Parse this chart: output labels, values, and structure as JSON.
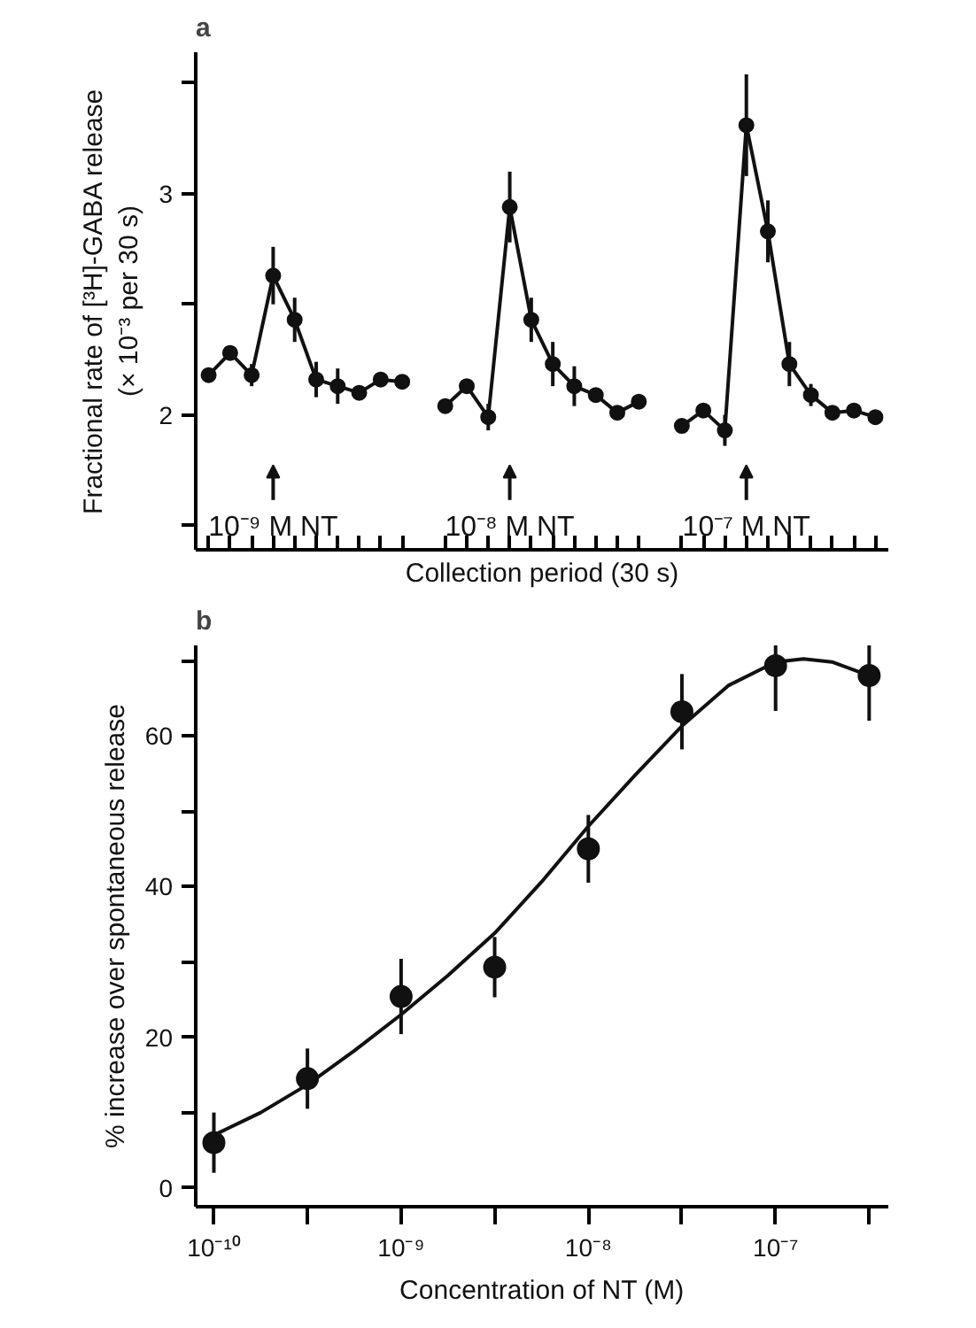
{
  "chart_data": [
    {
      "type": "line",
      "title": "a",
      "xlabel": "Collection period (30 s)",
      "ylabel": "Fractional rate of [³H]-GABA release\n(× 10⁻³ per 30 s)",
      "categories": [
        null,
        null,
        null,
        null,
        null,
        null,
        null,
        null,
        null,
        null,
        null,
        null,
        null,
        null,
        null,
        null,
        null,
        null,
        null,
        null,
        null,
        null,
        null,
        null,
        null,
        null,
        null,
        null,
        null,
        null,
        null,
        null
      ],
      "ylim": [
        1.39,
        3.64
      ],
      "yticks": [
        {
          "value": 1.5,
          "label": null
        },
        2,
        {
          "value": 2.5,
          "label": null
        },
        3,
        {
          "value": 3.5,
          "label": null
        }
      ],
      "marker": "circle",
      "line_style": "solid",
      "grid": false,
      "tick_labels": "y",
      "annotations": [
        "10⁻⁹ M NT",
        "10⁻⁸ M NT",
        "10⁻⁷ M NT"
      ],
      "series": [
        {
          "color": "#111111",
          "values": [
            2.18,
            2.28,
            2.18,
            2.63,
            2.43,
            2.16,
            2.13,
            2.1,
            2.16,
            2.15,
            null,
            null,
            null,
            null,
            null,
            null,
            null,
            null,
            null,
            null,
            null,
            null,
            null,
            null,
            null,
            null,
            null,
            null,
            null,
            null,
            null,
            null
          ],
          "errors": [
            null,
            null,
            0.05,
            0.13,
            0.1,
            0.08,
            0.08,
            null,
            null,
            null,
            null,
            null,
            null,
            null,
            null,
            null,
            null,
            null,
            null,
            null,
            null,
            null,
            null,
            null,
            null,
            null,
            null,
            null,
            null,
            null,
            null,
            null
          ]
        },
        {
          "color": "#111111",
          "values": [
            null,
            null,
            null,
            null,
            null,
            null,
            null,
            null,
            null,
            null,
            null,
            2.04,
            2.13,
            1.99,
            2.94,
            2.43,
            2.23,
            2.13,
            2.09,
            2.01,
            2.06,
            null,
            null,
            null,
            null,
            null,
            null,
            null,
            null,
            null,
            null,
            null
          ],
          "errors": [
            null,
            null,
            null,
            null,
            null,
            null,
            null,
            null,
            null,
            null,
            null,
            null,
            null,
            0.06,
            0.16,
            0.1,
            0.1,
            0.09,
            null,
            null,
            null,
            null,
            null,
            null,
            null,
            null,
            null,
            null,
            null,
            null,
            null,
            null
          ]
        },
        {
          "color": "#111111",
          "values": [
            null,
            null,
            null,
            null,
            null,
            null,
            null,
            null,
            null,
            null,
            null,
            null,
            null,
            null,
            null,
            null,
            null,
            null,
            null,
            null,
            null,
            null,
            1.95,
            2.02,
            1.93,
            3.31,
            2.83,
            2.23,
            2.09,
            2.01,
            2.02,
            1.99
          ],
          "errors": [
            null,
            null,
            null,
            null,
            null,
            null,
            null,
            null,
            null,
            null,
            null,
            null,
            null,
            null,
            null,
            null,
            null,
            null,
            null,
            null,
            null,
            null,
            null,
            null,
            0.07,
            0.23,
            0.14,
            0.1,
            0.05,
            null,
            null,
            null
          ]
        }
      ]
    },
    {
      "type": "scatter",
      "title": "b",
      "xlabel": "Concentration of NT (M)",
      "ylabel": "% increase over spontaneous release",
      "log": "x",
      "grid": false,
      "marker": "circle",
      "xlim": [
        8e-11,
        4e-07
      ],
      "xticks": [
        {
          "value": 1e-10,
          "label": "10⁻¹⁰"
        },
        {
          "value": 3.16e-10,
          "label": null
        },
        {
          "value": 1e-09,
          "label": "10⁻⁹"
        },
        {
          "value": 3.16e-09,
          "label": null
        },
        {
          "value": 1e-08,
          "label": "10⁻⁸"
        },
        {
          "value": 3.16e-08,
          "label": null
        },
        {
          "value": 1e-07,
          "label": "10⁻⁷"
        },
        {
          "value": 3.16e-07,
          "label": null
        }
      ],
      "ylim": [
        -2.5,
        72
      ],
      "yticks": [
        0,
        {
          "value": 10,
          "label": null
        },
        20,
        {
          "value": 30,
          "label": null
        },
        40,
        {
          "value": 50,
          "label": null
        },
        60,
        {
          "value": 70,
          "label": null
        }
      ],
      "x": [
        1e-10,
        3.16e-10,
        1e-09,
        3.16e-09,
        1e-08,
        3.16e-08,
        1e-07,
        3.16e-07
      ],
      "series": [
        {
          "type": "scatter",
          "color": "#111111",
          "values": [
            6,
            14.5,
            25.4,
            29.3,
            45,
            63.2,
            69.3,
            68
          ],
          "errors": [
            4,
            4,
            5,
            4,
            4.5,
            5,
            6,
            6
          ]
        },
        {
          "type": "line",
          "color": "#111111",
          "marker": "none",
          "x": [
            1e-10,
            1.78e-10,
            3.16e-10,
            5.62e-10,
            1e-09,
            1.78e-09,
            3.16e-09,
            5.62e-09,
            1e-08,
            1.78e-08,
            3.16e-08,
            5.62e-08,
            1e-07,
            1.41e-07,
            2e-07,
            3.16e-07
          ],
          "values": [
            7,
            10,
            13.7,
            18.2,
            23,
            28.2,
            33.8,
            40.6,
            48,
            54.8,
            61.3,
            66.7,
            69.8,
            70.2,
            69.8,
            68
          ]
        }
      ]
    }
  ]
}
